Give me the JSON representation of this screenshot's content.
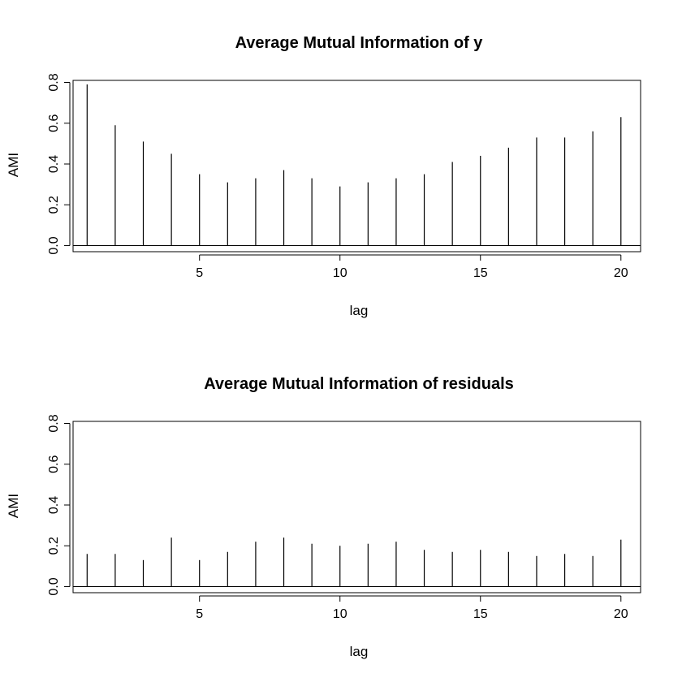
{
  "chart_data": [
    {
      "type": "bar",
      "title": "Average Mutual Information of y",
      "xlabel": "lag",
      "ylabel": "AMI",
      "xlim": [
        0.5,
        20.7
      ],
      "ylim": [
        -0.03,
        0.81
      ],
      "x_ticks": [
        5,
        10,
        15,
        20
      ],
      "y_ticks": [
        "0.0",
        "0.2",
        "0.4",
        "0.6",
        "0.8"
      ],
      "hline": 0,
      "x": [
        1,
        2,
        3,
        4,
        5,
        6,
        7,
        8,
        9,
        10,
        11,
        12,
        13,
        14,
        15,
        16,
        17,
        18,
        19,
        20
      ],
      "values": [
        0.79,
        0.59,
        0.51,
        0.45,
        0.35,
        0.31,
        0.33,
        0.37,
        0.33,
        0.29,
        0.31,
        0.33,
        0.35,
        0.41,
        0.44,
        0.48,
        0.53,
        0.53,
        0.56,
        0.63
      ]
    },
    {
      "type": "bar",
      "title": "Average Mutual Information of residuals",
      "xlabel": "lag",
      "ylabel": "AMI",
      "xlim": [
        0.5,
        20.7
      ],
      "ylim": [
        -0.03,
        0.81
      ],
      "x_ticks": [
        5,
        10,
        15,
        20
      ],
      "y_ticks": [
        "0.0",
        "0.2",
        "0.4",
        "0.6",
        "0.8"
      ],
      "hline": 0,
      "x": [
        1,
        2,
        3,
        4,
        5,
        6,
        7,
        8,
        9,
        10,
        11,
        12,
        13,
        14,
        15,
        16,
        17,
        18,
        19,
        20
      ],
      "values": [
        0.16,
        0.16,
        0.13,
        0.24,
        0.13,
        0.17,
        0.22,
        0.24,
        0.21,
        0.2,
        0.21,
        0.22,
        0.18,
        0.17,
        0.18,
        0.17,
        0.15,
        0.16,
        0.15,
        0.23
      ]
    }
  ]
}
